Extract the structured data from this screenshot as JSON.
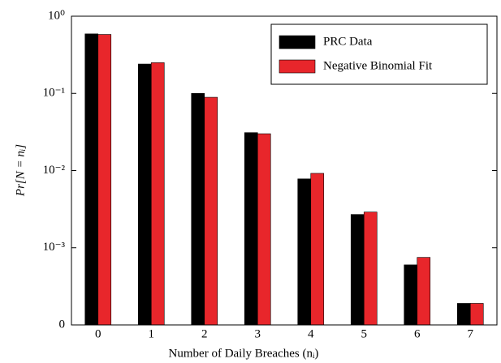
{
  "chart_data": {
    "type": "bar",
    "log_scale_y": true,
    "xlabel": "Number of Daily Breaches (nᵢ)",
    "ylabel": "Pr[N = nᵢ]",
    "categories": [
      "0",
      "1",
      "2",
      "3",
      "4",
      "5",
      "6",
      "7"
    ],
    "series": [
      {
        "name": "PRC Data",
        "color": "#000000",
        "values": [
          0.59,
          0.24,
          0.1,
          0.031,
          0.0078,
          0.0027,
          0.0006,
          0.00019
        ]
      },
      {
        "name": "Negative Binomial Fit",
        "color": "#e8262b",
        "values": [
          0.58,
          0.25,
          0.089,
          0.03,
          0.0092,
          0.0029,
          0.00075,
          0.00019
        ]
      }
    ],
    "ylim": [
      0.0001,
      1
    ],
    "yticks": [
      {
        "value": 0.0001,
        "label": "0"
      },
      {
        "value": 0.001,
        "label": "10⁻³"
      },
      {
        "value": 0.01,
        "label": "10⁻²"
      },
      {
        "value": 0.1,
        "label": "10⁻¹"
      },
      {
        "value": 1,
        "label": "10⁰"
      }
    ],
    "legend": "upper right",
    "grid": false
  }
}
